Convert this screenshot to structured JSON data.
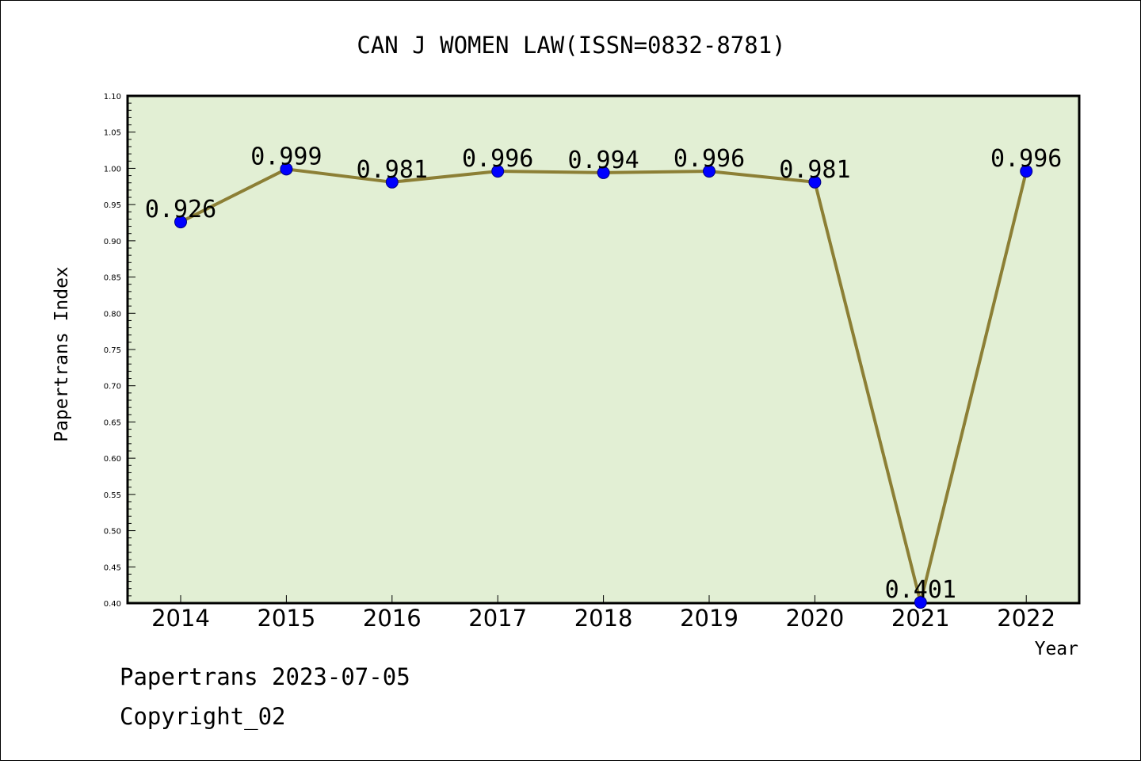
{
  "chart_data": {
    "type": "line",
    "title": "CAN J WOMEN LAW(ISSN=0832-8781)",
    "xlabel": "Year",
    "ylabel": "Papertrans Index",
    "categories": [
      "2014",
      "2015",
      "2016",
      "2017",
      "2018",
      "2019",
      "2020",
      "2021",
      "2022"
    ],
    "values": [
      0.926,
      0.999,
      0.981,
      0.996,
      0.994,
      0.996,
      0.981,
      0.401,
      0.996
    ],
    "data_labels": [
      "0.926",
      "0.999",
      "0.981",
      "0.996",
      "0.994",
      "0.996",
      "0.981",
      "0.401",
      "0.996"
    ],
    "ylim": [
      0.4,
      1.1
    ],
    "yticks": [
      "0.40",
      "0.45",
      "0.50",
      "0.55",
      "0.60",
      "0.65",
      "0.70",
      "0.75",
      "0.80",
      "0.85",
      "0.90",
      "0.95",
      "1.00",
      "1.05",
      "1.10"
    ],
    "grid": false,
    "legend": "none",
    "colors": {
      "plot_background": "#e2efd4",
      "line": "#8c7f35",
      "marker_fill": "#0000ff",
      "marker_stroke": "#000080"
    }
  },
  "footer": {
    "date_text": "Papertrans 2023-07-05",
    "copyright_text": "Copyright_02"
  }
}
